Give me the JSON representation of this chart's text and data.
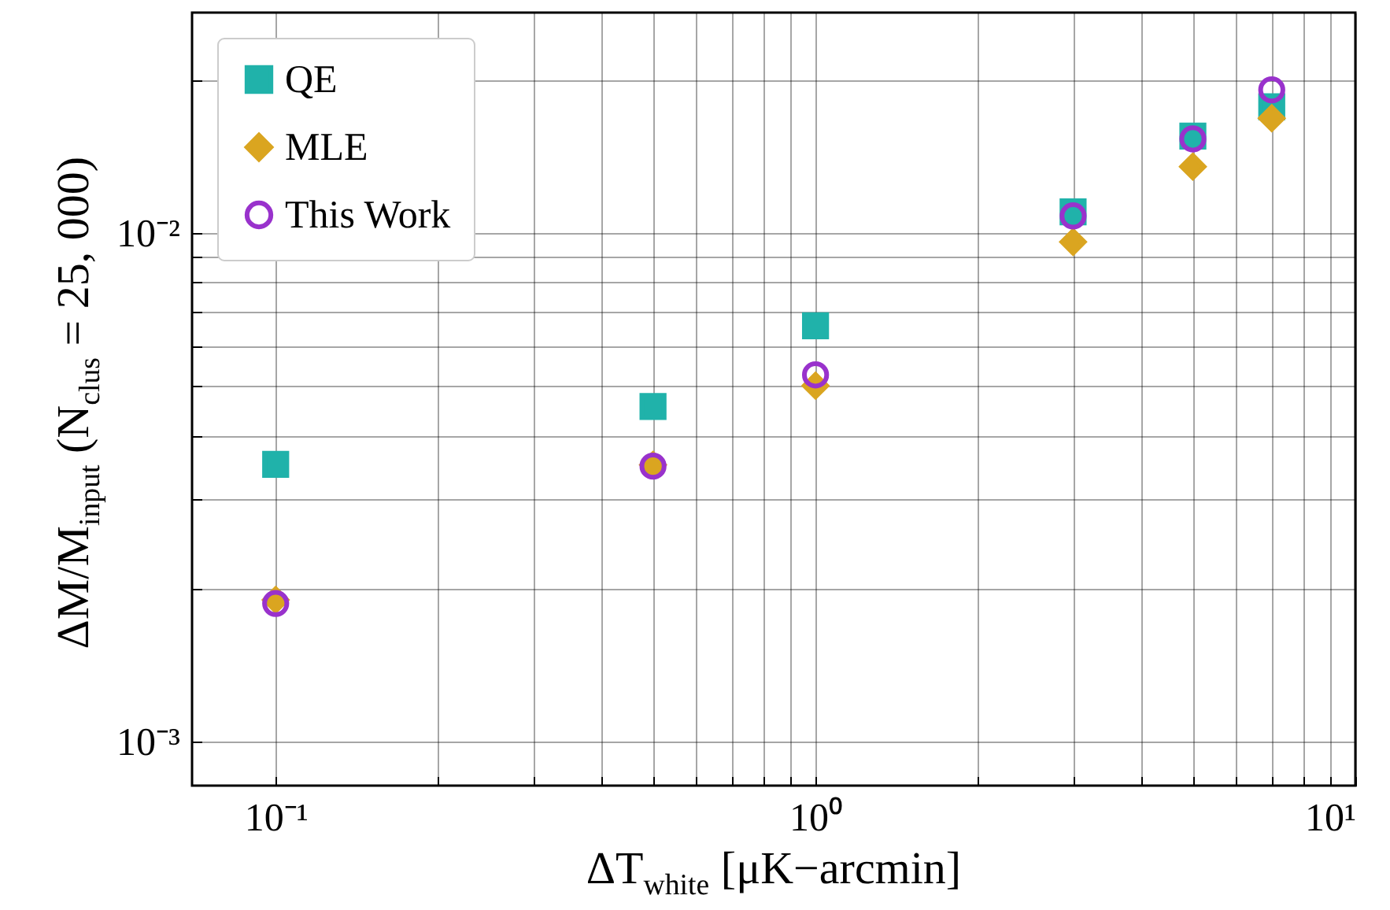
{
  "chart_data": {
    "type": "scatter",
    "xlabel": "ΔT$_{white}$ [μK−arcmin]",
    "ylabel": "ΔM/M$_{input}$ (N$_{clus}$ = 25, 000)",
    "x": [
      0.1,
      0.5,
      1.0,
      3.0,
      5.0,
      7.0
    ],
    "series": [
      {
        "name": "QE",
        "color": "#20b2aa",
        "marker": "square",
        "values": [
          0.00351,
          0.00456,
          0.00657,
          0.011,
          0.0155,
          0.0177
        ]
      },
      {
        "name": "MLE",
        "color": "#daa520",
        "marker": "diamond",
        "values": [
          0.0019,
          0.0035,
          0.00501,
          0.0096,
          0.0135,
          0.0168
        ]
      },
      {
        "name": "This Work",
        "color": "#9932cc",
        "marker": "circle",
        "values": [
          0.00187,
          0.00348,
          0.00526,
          0.0108,
          0.0153,
          0.0191
        ]
      }
    ],
    "log": "xy",
    "xlim": [
      0.07,
      10
    ],
    "ylim": [
      0.00082,
      0.0271
    ],
    "xticks": [
      {
        "value": 0.1,
        "label": "10⁻¹"
      },
      {
        "value": 0.2,
        "label": null
      },
      {
        "value": 0.3,
        "label": null
      },
      {
        "value": 0.4,
        "label": null
      },
      {
        "value": 0.5,
        "label": null
      },
      {
        "value": 0.6,
        "label": null
      },
      {
        "value": 0.7,
        "label": null
      },
      {
        "value": 0.8,
        "label": null
      },
      {
        "value": 0.9,
        "label": null
      },
      {
        "value": 1,
        "label": "10⁰"
      },
      {
        "value": 2,
        "label": null
      },
      {
        "value": 3,
        "label": null
      },
      {
        "value": 4,
        "label": null
      },
      {
        "value": 5,
        "label": null
      },
      {
        "value": 6,
        "label": null
      },
      {
        "value": 7,
        "label": null
      },
      {
        "value": 8,
        "label": null
      },
      {
        "value": 9,
        "label": null
      },
      {
        "value": 10,
        "label": "10¹"
      }
    ],
    "yticks": [
      {
        "value": 0.001,
        "label": "10⁻³"
      },
      {
        "value": 0.002,
        "label": null
      },
      {
        "value": 0.003,
        "label": null
      },
      {
        "value": 0.004,
        "label": null
      },
      {
        "value": 0.005,
        "label": null
      },
      {
        "value": 0.006,
        "label": null
      },
      {
        "value": 0.007,
        "label": null
      },
      {
        "value": 0.008,
        "label": null
      },
      {
        "value": 0.009,
        "label": null
      },
      {
        "value": 0.01,
        "label": "10⁻²"
      },
      {
        "value": 0.02,
        "label": null
      }
    ],
    "grid": true,
    "legend": "top left"
  }
}
